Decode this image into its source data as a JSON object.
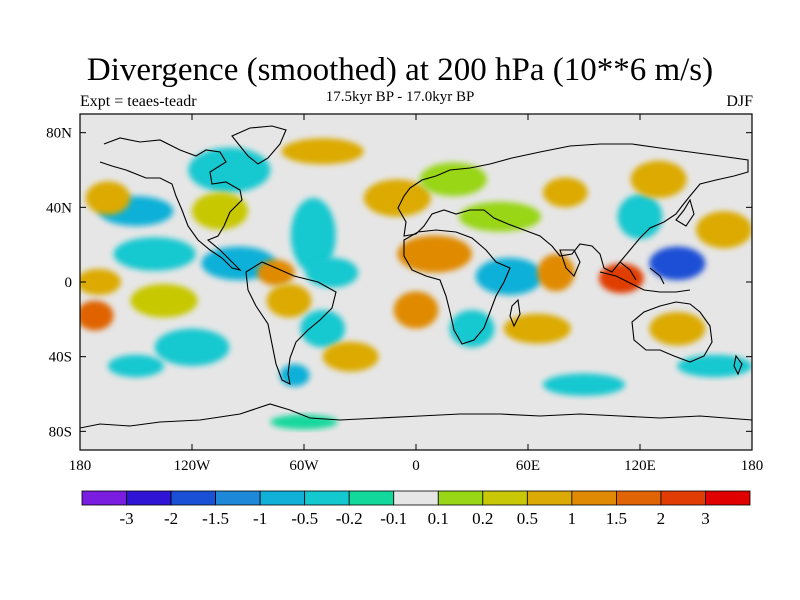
{
  "chart_data": {
    "type": "contour-map",
    "title": "Divergence (smoothed) at 200 hPa (10**6 m/s)",
    "subtitle": "17.5kyr BP - 17.0kyr BP",
    "experiment": "Expt = teaes-teadr",
    "season": "DJF",
    "xlim": [
      -180,
      180
    ],
    "ylim": [
      -90,
      90
    ],
    "x_ticks": [
      {
        "value": -180,
        "label": "180"
      },
      {
        "value": -120,
        "label": "120W"
      },
      {
        "value": -60,
        "label": "60W"
      },
      {
        "value": 0,
        "label": "0"
      },
      {
        "value": 60,
        "label": "60E"
      },
      {
        "value": 120,
        "label": "120E"
      },
      {
        "value": 180,
        "label": "180"
      }
    ],
    "y_ticks": [
      {
        "value": 80,
        "label": "80N"
      },
      {
        "value": 40,
        "label": "40N"
      },
      {
        "value": 0,
        "label": "0"
      },
      {
        "value": -40,
        "label": "40S"
      },
      {
        "value": -80,
        "label": "80S"
      }
    ],
    "colorbar": {
      "colors": [
        "#7a1de0",
        "#3014d6",
        "#1a50d6",
        "#1e88d8",
        "#10b0d8",
        "#14c8d0",
        "#12d89c",
        "#e6e6e6",
        "#98d616",
        "#c8c806",
        "#dcaa04",
        "#e08a04",
        "#e06404",
        "#e03c04",
        "#e00000"
      ],
      "labels": [
        "-3",
        "-2",
        "-1.5",
        "-1",
        "-0.5",
        "-0.2",
        "-0.1",
        "0.1",
        "0.2",
        "0.5",
        "1",
        "1.5",
        "2",
        "3"
      ]
    },
    "field_blobs": [
      {
        "lon": -140,
        "lat": 15,
        "rx": 22,
        "ry": 9,
        "level": 5
      },
      {
        "lon": -150,
        "lat": 38,
        "rx": 20,
        "ry": 8,
        "level": 4
      },
      {
        "lon": -165,
        "lat": 45,
        "rx": 12,
        "ry": 9,
        "level": 10
      },
      {
        "lon": -170,
        "lat": 0,
        "rx": 12,
        "ry": 7,
        "level": 10
      },
      {
        "lon": -172,
        "lat": -18,
        "rx": 10,
        "ry": 8,
        "level": 12
      },
      {
        "lon": -135,
        "lat": -10,
        "rx": 18,
        "ry": 9,
        "level": 9
      },
      {
        "lon": -120,
        "lat": -35,
        "rx": 20,
        "ry": 10,
        "level": 5
      },
      {
        "lon": -150,
        "lat": -45,
        "rx": 15,
        "ry": 6,
        "level": 5
      },
      {
        "lon": -100,
        "lat": 60,
        "rx": 22,
        "ry": 12,
        "level": 5
      },
      {
        "lon": -105,
        "lat": 38,
        "rx": 15,
        "ry": 10,
        "level": 9
      },
      {
        "lon": -95,
        "lat": 10,
        "rx": 20,
        "ry": 9,
        "level": 4
      },
      {
        "lon": -75,
        "lat": 5,
        "rx": 10,
        "ry": 7,
        "level": 11
      },
      {
        "lon": -68,
        "lat": -10,
        "rx": 12,
        "ry": 9,
        "level": 10
      },
      {
        "lon": -55,
        "lat": 25,
        "rx": 12,
        "ry": 20,
        "level": 5
      },
      {
        "lon": -45,
        "lat": 5,
        "rx": 14,
        "ry": 8,
        "level": 5
      },
      {
        "lon": -50,
        "lat": -25,
        "rx": 12,
        "ry": 10,
        "level": 5
      },
      {
        "lon": -35,
        "lat": -40,
        "rx": 15,
        "ry": 8,
        "level": 10
      },
      {
        "lon": -65,
        "lat": -50,
        "rx": 8,
        "ry": 6,
        "level": 4
      },
      {
        "lon": -60,
        "lat": -75,
        "rx": 18,
        "ry": 4,
        "level": 6
      },
      {
        "lon": -50,
        "lat": 70,
        "rx": 22,
        "ry": 7,
        "level": 10
      },
      {
        "lon": -10,
        "lat": 45,
        "rx": 18,
        "ry": 10,
        "level": 10
      },
      {
        "lon": 20,
        "lat": 55,
        "rx": 18,
        "ry": 9,
        "level": 8
      },
      {
        "lon": 10,
        "lat": 15,
        "rx": 20,
        "ry": 10,
        "level": 11
      },
      {
        "lon": 0,
        "lat": -15,
        "rx": 12,
        "ry": 10,
        "level": 11
      },
      {
        "lon": 30,
        "lat": -25,
        "rx": 12,
        "ry": 10,
        "level": 5
      },
      {
        "lon": 50,
        "lat": 3,
        "rx": 18,
        "ry": 10,
        "level": 4
      },
      {
        "lon": 45,
        "lat": 35,
        "rx": 22,
        "ry": 8,
        "level": 8
      },
      {
        "lon": 80,
        "lat": 48,
        "rx": 12,
        "ry": 8,
        "level": 10
      },
      {
        "lon": 75,
        "lat": 5,
        "rx": 10,
        "ry": 10,
        "level": 11
      },
      {
        "lon": 65,
        "lat": -25,
        "rx": 18,
        "ry": 8,
        "level": 10
      },
      {
        "lon": 90,
        "lat": -55,
        "rx": 22,
        "ry": 6,
        "level": 5
      },
      {
        "lon": 110,
        "lat": 2,
        "rx": 12,
        "ry": 8,
        "level": 13
      },
      {
        "lon": 120,
        "lat": 35,
        "rx": 12,
        "ry": 12,
        "level": 5
      },
      {
        "lon": 140,
        "lat": 10,
        "rx": 15,
        "ry": 9,
        "level": 2
      },
      {
        "lon": 165,
        "lat": 28,
        "rx": 15,
        "ry": 10,
        "level": 10
      },
      {
        "lon": 140,
        "lat": -25,
        "rx": 15,
        "ry": 9,
        "level": 10
      },
      {
        "lon": 160,
        "lat": -45,
        "rx": 20,
        "ry": 6,
        "level": 5
      },
      {
        "lon": 130,
        "lat": 55,
        "rx": 15,
        "ry": 10,
        "level": 10
      }
    ]
  }
}
